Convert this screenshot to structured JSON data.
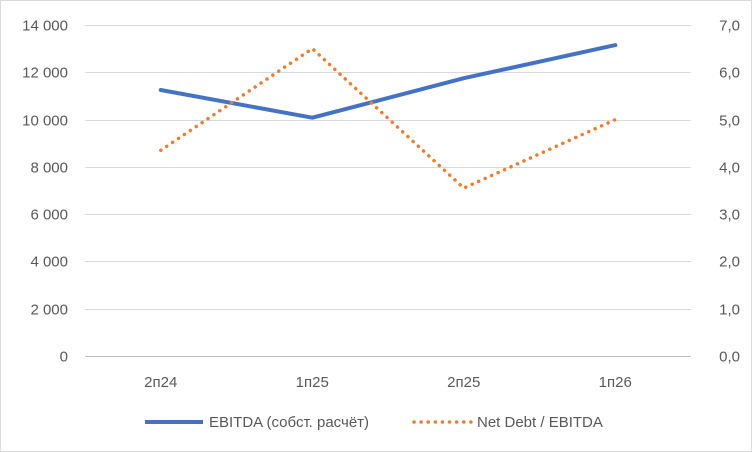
{
  "chart_data": {
    "type": "line",
    "categories": [
      "2п24",
      "1п25",
      "2п25",
      "1п26"
    ],
    "series": [
      {
        "name": "EBITDA (собст. расчёт)",
        "axis": "left",
        "values": [
          11250,
          10080,
          11750,
          13150
        ],
        "color": "#4472c4",
        "style": "solid"
      },
      {
        "name": "Net Debt / EBITDA",
        "axis": "right",
        "values": [
          4.35,
          6.5,
          3.55,
          5.0
        ],
        "color": "#ed7d31",
        "style": "dotted"
      }
    ],
    "y_left": {
      "range": [
        0,
        14000
      ],
      "ticks": [
        0,
        2000,
        4000,
        6000,
        8000,
        10000,
        12000,
        14000
      ],
      "tick_labels": [
        "0",
        "2 000",
        "4 000",
        "6 000",
        "8 000",
        "10 000",
        "12 000",
        "14 000"
      ]
    },
    "y_right": {
      "range": [
        0,
        7
      ],
      "ticks": [
        0,
        1,
        2,
        3,
        4,
        5,
        6,
        7
      ],
      "tick_labels": [
        "0,0",
        "1,0",
        "2,0",
        "3,0",
        "4,0",
        "5,0",
        "6,0",
        "7,0"
      ]
    },
    "grid": true,
    "legend": "bottom"
  }
}
